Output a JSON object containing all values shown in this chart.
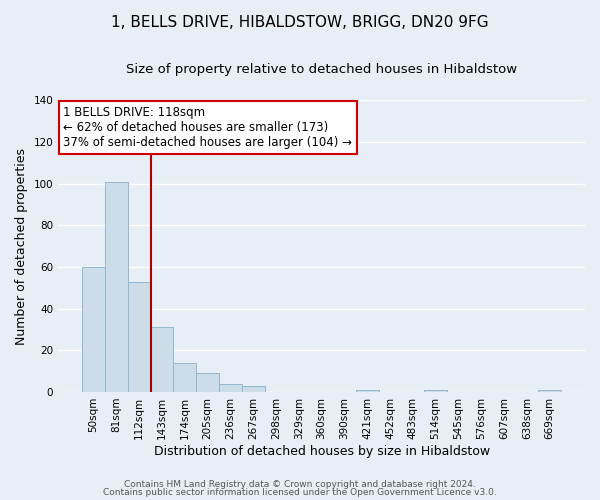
{
  "title": "1, BELLS DRIVE, HIBALDSTOW, BRIGG, DN20 9FG",
  "subtitle": "Size of property relative to detached houses in Hibaldstow",
  "xlabel": "Distribution of detached houses by size in Hibaldstow",
  "ylabel": "Number of detached properties",
  "bar_labels": [
    "50sqm",
    "81sqm",
    "112sqm",
    "143sqm",
    "174sqm",
    "205sqm",
    "236sqm",
    "267sqm",
    "298sqm",
    "329sqm",
    "360sqm",
    "390sqm",
    "421sqm",
    "452sqm",
    "483sqm",
    "514sqm",
    "545sqm",
    "576sqm",
    "607sqm",
    "638sqm",
    "669sqm"
  ],
  "bar_values": [
    60,
    101,
    53,
    31,
    14,
    9,
    4,
    3,
    0,
    0,
    0,
    0,
    1,
    0,
    0,
    1,
    0,
    0,
    0,
    0,
    1
  ],
  "bar_color": "#ccdce9",
  "bar_edge_color": "#92b8d0",
  "background_color": "#e8eef5",
  "plot_bg_color": "#e8eef5",
  "grid_color": "#ffffff",
  "vline_x_idx": 2,
  "vline_color": "#aa0000",
  "annotation_line1": "1 BELLS DRIVE: 118sqm",
  "annotation_line2": "← 62% of detached houses are smaller (173)",
  "annotation_line3": "37% of semi-detached houses are larger (104) →",
  "annotation_box_facecolor": "#ffffff",
  "annotation_box_edgecolor": "#cc0000",
  "ylim": [
    0,
    140
  ],
  "yticks": [
    0,
    20,
    40,
    60,
    80,
    100,
    120,
    140
  ],
  "footer1": "Contains HM Land Registry data © Crown copyright and database right 2024.",
  "footer2": "Contains public sector information licensed under the Open Government Licence v3.0.",
  "title_fontsize": 11,
  "subtitle_fontsize": 9.5,
  "axis_label_fontsize": 9,
  "tick_fontsize": 7.5,
  "annotation_fontsize": 8.5,
  "footer_fontsize": 6.5
}
